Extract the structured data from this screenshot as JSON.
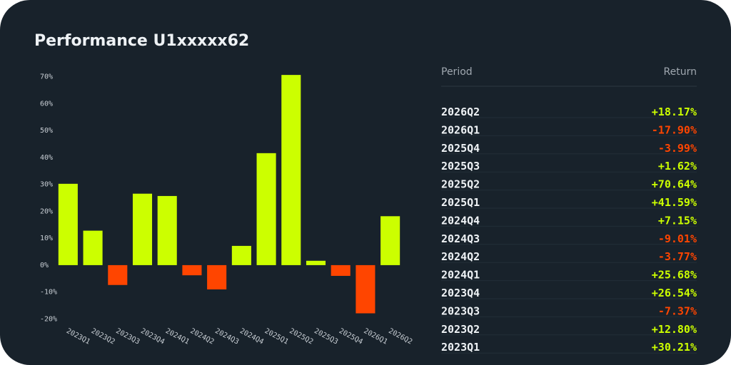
{
  "title": "Performance U1xxxxx62",
  "chart_data": {
    "type": "bar",
    "categories": [
      "2023Q1",
      "2023Q2",
      "2023Q3",
      "2023Q4",
      "2024Q1",
      "2024Q2",
      "2024Q3",
      "2024Q4",
      "2025Q1",
      "2025Q2",
      "2025Q3",
      "2025Q4",
      "2026Q1",
      "2026Q2"
    ],
    "values": [
      30.21,
      12.8,
      -7.37,
      26.54,
      25.68,
      -3.77,
      -9.01,
      7.15,
      41.59,
      70.64,
      1.62,
      -3.99,
      -17.9,
      18.17
    ],
    "positive_color": "#ccff00",
    "negative_color": "#ff4500",
    "ylim": [
      -22,
      72
    ],
    "yticks": [
      {
        "value": -20,
        "label": "-20%"
      },
      {
        "value": -10,
        "label": "-10%"
      },
      {
        "value": 0,
        "label": "0%"
      },
      {
        "value": 10,
        "label": "10%"
      },
      {
        "value": 20,
        "label": "20%"
      },
      {
        "value": 30,
        "label": "30%"
      },
      {
        "value": 40,
        "label": "40%"
      },
      {
        "value": 50,
        "label": "50%"
      },
      {
        "value": 60,
        "label": "60%"
      },
      {
        "value": 70,
        "label": "70%"
      }
    ]
  },
  "table": {
    "header": [
      "Period",
      "Return"
    ],
    "rows": [
      [
        "2026Q2",
        "+18.17%"
      ],
      [
        "2026Q1",
        "-17.90%"
      ],
      [
        "2025Q4",
        "-3.99%"
      ],
      [
        "2025Q3",
        "+1.62%"
      ],
      [
        "2025Q2",
        "+70.64%"
      ],
      [
        "2025Q1",
        "+41.59%"
      ],
      [
        "2024Q4",
        "+7.15%"
      ],
      [
        "2024Q3",
        "-9.01%"
      ],
      [
        "2024Q2",
        "-3.77%"
      ],
      [
        "2024Q1",
        "+25.68%"
      ],
      [
        "2023Q4",
        "+26.54%"
      ],
      [
        "2023Q3",
        "-7.37%"
      ],
      [
        "2023Q2",
        "+12.80%"
      ],
      [
        "2023Q1",
        "+30.21%"
      ]
    ]
  }
}
